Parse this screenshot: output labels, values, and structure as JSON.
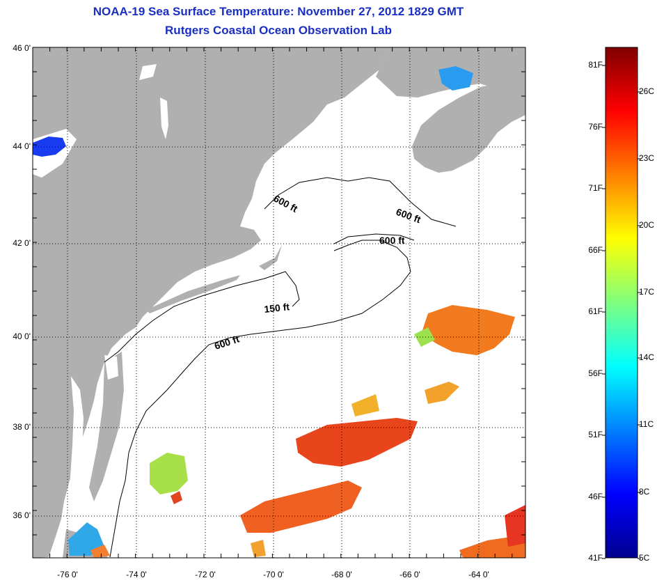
{
  "title": {
    "line1": "NOAA-19 Sea Surface Temperature:  November 27, 2012 1829 GMT",
    "line2": "Rutgers Coastal Ocean Observation Lab"
  },
  "lat_ticks": [
    "46 0'",
    "44 0'",
    "42 0'",
    "40 0'",
    "38 0'",
    "36 0'"
  ],
  "lon_ticks": [
    "-76 0'",
    "-74 0'",
    "-72 0'",
    "-70 0'",
    "-68 0'",
    "-66 0'",
    "-64 0'"
  ],
  "contours": {
    "c1": "600 ft",
    "c2": "600 ft",
    "c3": "600 ft",
    "c4": "150 ft",
    "c5": "600 ft"
  },
  "colorbar": {
    "f_labels": [
      "81F",
      "76F",
      "71F",
      "66F",
      "61F",
      "56F",
      "51F",
      "46F",
      "41F"
    ],
    "c_labels": [
      "26C",
      "23C",
      "20C",
      "17C",
      "14C",
      "11C",
      "8C",
      "5C"
    ]
  },
  "colors": {
    "title": "#1a2fc2",
    "land": "#b0b0b0",
    "water": "#ffffff"
  }
}
